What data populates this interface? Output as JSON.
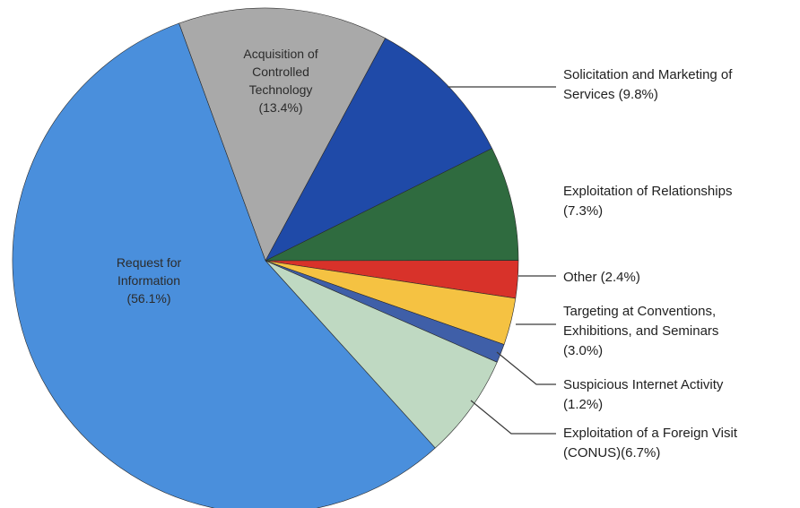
{
  "chart_data": {
    "type": "pie",
    "title": "",
    "slices": [
      {
        "label": "Request for Information",
        "value": 56.1,
        "text": [
          "Request for",
          "Information",
          "(56.1%)"
        ],
        "color": "#4a8fdc",
        "placement": "inside"
      },
      {
        "label": "Acquisition of Controlled Technology",
        "value": 13.4,
        "text": [
          "Acquisition of",
          "Controlled",
          "Technology",
          "(13.4%)"
        ],
        "color": "#a9a9a9",
        "placement": "inside"
      },
      {
        "label": "Solicitation and Marketing of Services",
        "value": 9.8,
        "text": [
          "Solicitation and Marketing of",
          "Services (9.8%)"
        ],
        "color": "#1f4aa8",
        "placement": "outside"
      },
      {
        "label": "Exploitation of Relationships",
        "value": 7.3,
        "text": [
          "Exploitation of Relationships",
          "(7.3%)"
        ],
        "color": "#2f6b3f",
        "placement": "outside"
      },
      {
        "label": "Other",
        "value": 2.4,
        "text": [
          "Other (2.4%)"
        ],
        "color": "#d8322a",
        "placement": "outside"
      },
      {
        "label": "Targeting at Conventions, Exhibitions, and Seminars",
        "value": 3.0,
        "text": [
          "Targeting at Conventions,",
          "Exhibitions, and Seminars",
          "(3.0%)"
        ],
        "color": "#f5c242",
        "placement": "outside"
      },
      {
        "label": "Suspicious Internet Activity",
        "value": 1.2,
        "text": [
          "Suspicious Internet Activity",
          "(1.2%)"
        ],
        "color": "#3f5fa8",
        "placement": "outside"
      },
      {
        "label": "Exploitation of a Foreign Visit (CONUS)",
        "value": 6.7,
        "text": [
          "Exploitation of a Foreign Visit",
          "(CONUS)(6.7%)"
        ],
        "color": "#bfd9c2",
        "placement": "outside"
      }
    ],
    "start": "top, just left of 12 o'clock",
    "direction": "clockwise, with Request for Information drawn last",
    "legend": "none"
  }
}
